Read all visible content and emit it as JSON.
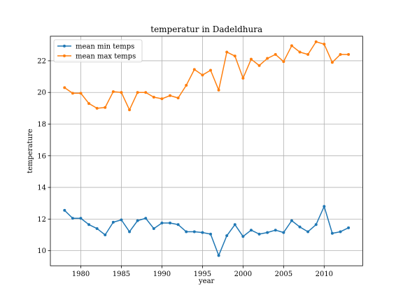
{
  "chart_data": {
    "type": "line",
    "title": "temperatur in Dadeldhura",
    "xlabel": "year",
    "ylabel": "temperature",
    "xlim": [
      1976.25,
      2014.75
    ],
    "ylim": [
      9.05,
      23.55
    ],
    "xticks": [
      1980,
      1985,
      1990,
      1995,
      2000,
      2005,
      2010
    ],
    "yticks": [
      10,
      12,
      14,
      16,
      18,
      20,
      22
    ],
    "grid": true,
    "legend_position": "upper-left",
    "x": [
      1978,
      1979,
      1980,
      1981,
      1982,
      1983,
      1984,
      1985,
      1986,
      1987,
      1988,
      1989,
      1990,
      1991,
      1992,
      1993,
      1994,
      1995,
      1996,
      1997,
      1998,
      1999,
      2000,
      2001,
      2002,
      2003,
      2004,
      2005,
      2006,
      2007,
      2008,
      2009,
      2010,
      2011,
      2012,
      2013
    ],
    "series": [
      {
        "name": "mean min temps",
        "color": "#1f77b4",
        "values": [
          12.55,
          12.05,
          12.05,
          11.65,
          11.4,
          11.0,
          11.8,
          11.95,
          11.2,
          11.9,
          12.05,
          11.4,
          11.75,
          11.75,
          11.65,
          11.2,
          11.2,
          11.15,
          11.05,
          9.7,
          10.95,
          11.65,
          10.9,
          11.3,
          11.05,
          11.15,
          11.3,
          11.15,
          11.9,
          11.5,
          11.2,
          11.65,
          12.8,
          11.1,
          11.2,
          11.45
        ]
      },
      {
        "name": "mean max temps",
        "color": "#ff7f0e",
        "values": [
          20.3,
          19.95,
          19.95,
          19.3,
          19.0,
          19.05,
          20.05,
          20.0,
          18.9,
          20.0,
          20.0,
          19.7,
          19.6,
          19.8,
          19.65,
          20.45,
          21.45,
          21.1,
          21.4,
          20.15,
          22.55,
          22.3,
          20.9,
          22.1,
          21.7,
          22.15,
          22.4,
          21.95,
          22.95,
          22.55,
          22.4,
          23.2,
          23.05,
          21.9,
          22.4,
          22.4
        ]
      }
    ]
  }
}
